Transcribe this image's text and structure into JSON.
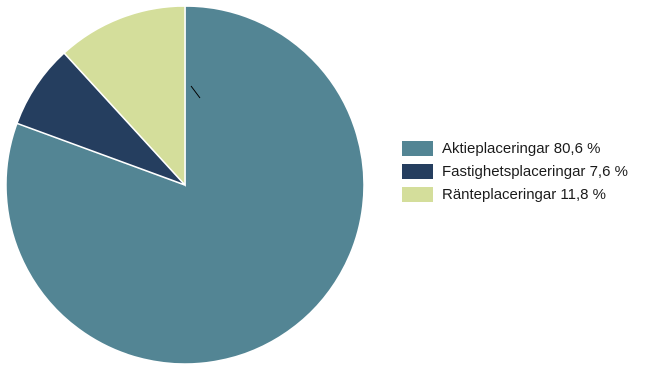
{
  "chart_data": {
    "type": "pie",
    "slices": [
      {
        "label": "Aktieplaceringar 80,6 %",
        "value": 80.6,
        "color": "#538594"
      },
      {
        "label": "Fastighetsplaceringar 7,6 %",
        "value": 7.6,
        "color": "#253e5f"
      },
      {
        "label": "Ränteplaceringar 11,8 %",
        "value": 11.8,
        "color": "#d4de9b"
      }
    ],
    "start_angle_deg": 0,
    "direction": "clockwise",
    "legend_position": "right"
  }
}
